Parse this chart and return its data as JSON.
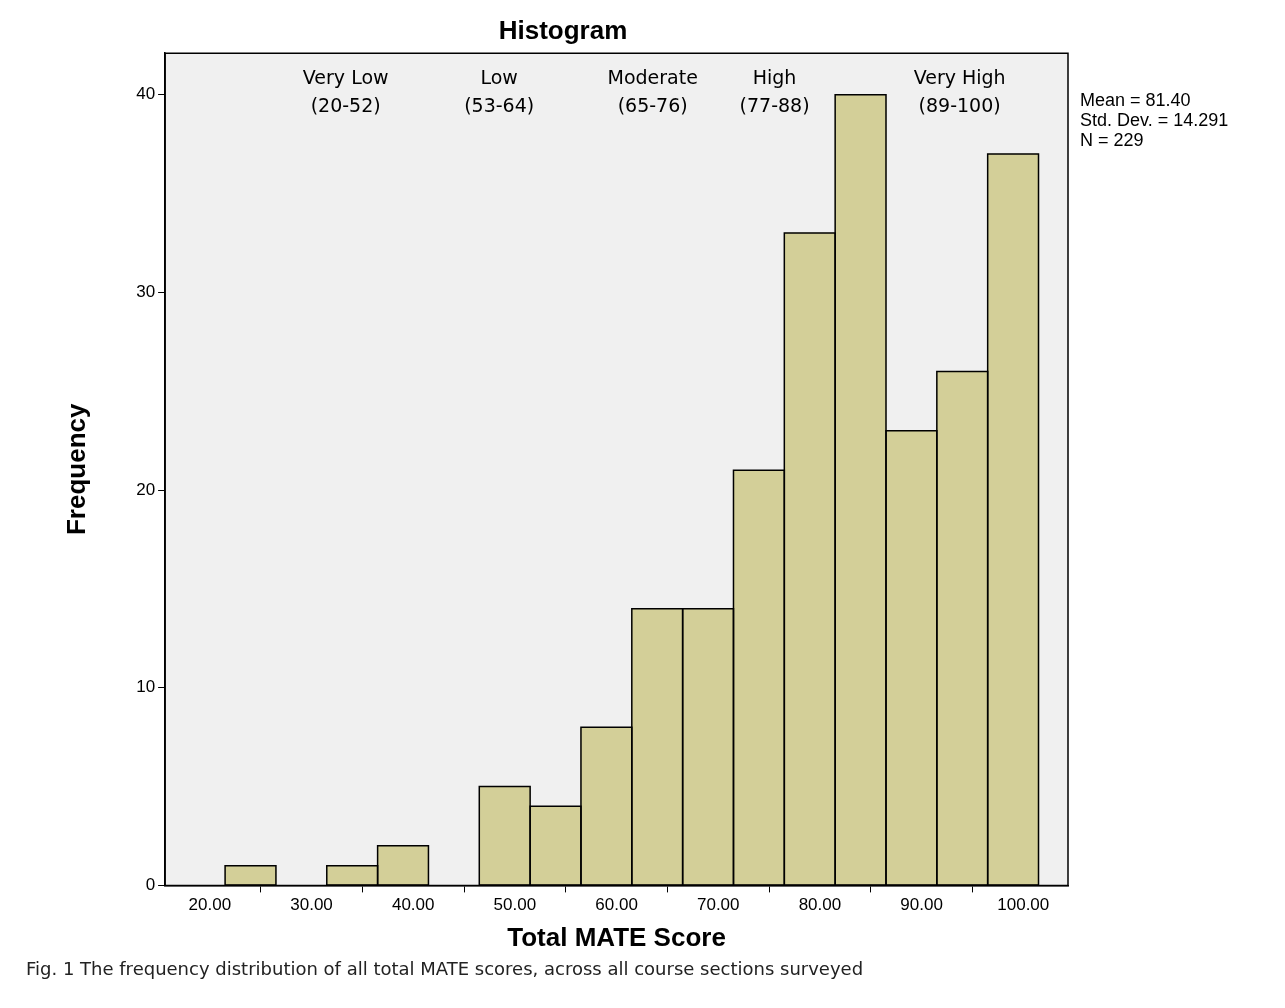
{
  "chart_data": {
    "type": "histogram",
    "title": "Histogram",
    "xlabel": "Total MATE Score",
    "ylabel": "Frequency",
    "bins": [
      21.5,
      26.5,
      31.5,
      36.5,
      41.5,
      46.5,
      51.5,
      56.5,
      61.5,
      66.5,
      71.5,
      76.5,
      81.5,
      86.5,
      91.5,
      96.5,
      101.5
    ],
    "values": [
      1,
      0,
      1,
      2,
      0,
      5,
      4,
      8,
      14,
      14,
      21,
      33,
      40,
      23,
      26,
      37
    ],
    "color": "#d3cf98",
    "xlim": [
      15.6,
      104.4
    ],
    "xticks": [
      {
        "value": 20,
        "label": "20.00"
      },
      {
        "value": 30,
        "label": "30.00"
      },
      {
        "value": 40,
        "label": "40.00"
      },
      {
        "value": 50,
        "label": "50.00"
      },
      {
        "value": 60,
        "label": "60.00"
      },
      {
        "value": 70,
        "label": "70.00"
      },
      {
        "value": 80,
        "label": "80.00"
      },
      {
        "value": 90,
        "label": "90.00"
      },
      {
        "value": 100,
        "label": "100.00"
      }
    ],
    "ylim": [
      0,
      42.1
    ],
    "yticks": [
      0,
      10,
      20,
      30,
      40
    ],
    "grid": false,
    "legend": false,
    "annotations": [
      "Very Low\n(20-52)",
      "Low\n(53-64)",
      "Moderate\n(65-76)",
      "High\n(77-88)",
      "Very High\n(89-100)",
      "Mean = 81.40\nStd. Dev. = 14.291\nN = 229",
      "Fig. 1 The frequency distribution of all total MATE scores, across all course sections surveyed"
    ]
  }
}
